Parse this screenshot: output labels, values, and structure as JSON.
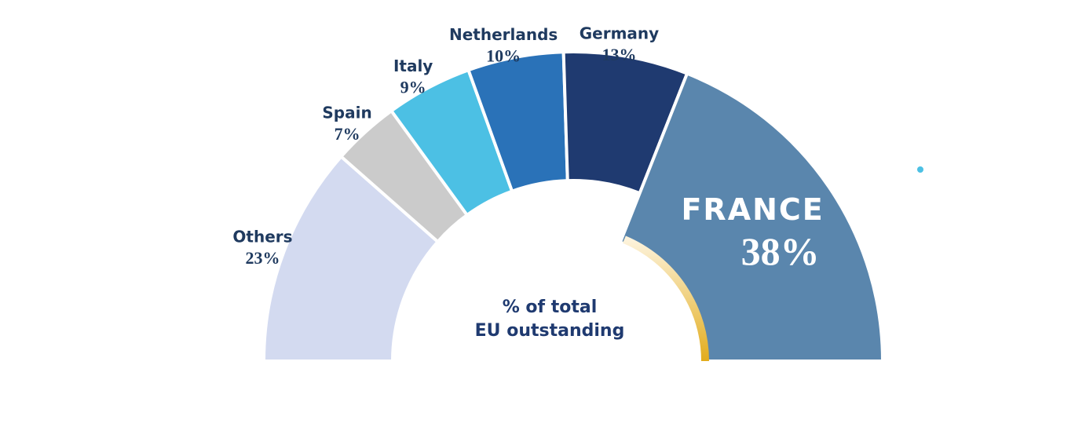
{
  "chart_data": {
    "type": "semi-donut",
    "center_label": [
      "% of total",
      "EU outstanding"
    ],
    "categories": [
      "Others",
      "Spain",
      "Italy",
      "Netherlands",
      "Germany",
      "FRANCE"
    ],
    "values": [
      23,
      7,
      9,
      10,
      13,
      38
    ],
    "value_labels": [
      "23%",
      "7%",
      "9%",
      "10%",
      "13%",
      "38%"
    ],
    "colors": [
      "#d3daf0",
      "#cbcbcb",
      "#4cc0e4",
      "#2a72b8",
      "#1f3a70",
      "#5a86ad"
    ]
  }
}
